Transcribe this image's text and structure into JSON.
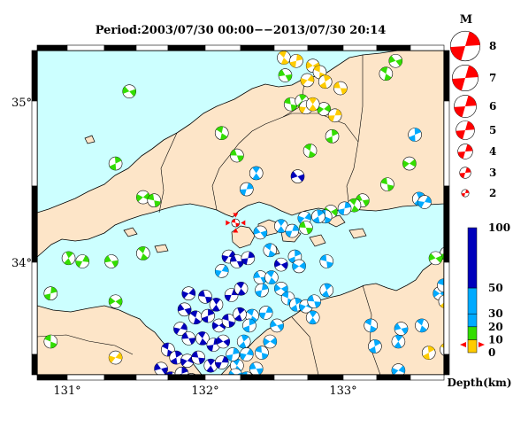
{
  "map": {
    "title": "Period:2003/07/30 00:00−−2013/07/30 20:14",
    "lat_labels": [
      "35°",
      "34°"
    ],
    "lon_labels": [
      "131°",
      "132°",
      "133°"
    ],
    "colors": {
      "sea": "#ccffff",
      "land": "#fde5c8",
      "border": "#000000",
      "frame_black": "#000000"
    }
  },
  "magnitude_legend": {
    "heading": "M",
    "items": [
      {
        "label": "8",
        "magnitude": 8
      },
      {
        "label": "7",
        "magnitude": 7
      },
      {
        "label": "6",
        "magnitude": 6
      },
      {
        "label": "5",
        "magnitude": 5
      },
      {
        "label": "4",
        "magnitude": 4
      },
      {
        "label": "3",
        "magnitude": 3
      },
      {
        "label": "2",
        "magnitude": 2
      }
    ]
  },
  "depth_legend": {
    "labels": [
      "100",
      "50",
      "30",
      "20",
      "10",
      "0"
    ],
    "unit_label": "Depth(km)",
    "bands": [
      {
        "from": 0,
        "to": 10,
        "color": "#ffcc00"
      },
      {
        "from": 10,
        "to": 20,
        "color": "#33dd00"
      },
      {
        "from": 20,
        "to": 30,
        "color": "#00aaff"
      },
      {
        "from": 30,
        "to": 50,
        "color": "#00aaff"
      },
      {
        "from": 50,
        "to": 100,
        "color": "#0000bb"
      }
    ]
  },
  "events": {
    "highlight": {
      "lon": 132.22,
      "lat": 34.24,
      "color": "#ff0000"
    },
    "list": [
      {
        "lon": 131.45,
        "lat": 35.06,
        "c": "g"
      },
      {
        "lon": 132.12,
        "lat": 34.8,
        "c": "g"
      },
      {
        "lon": 131.35,
        "lat": 34.61,
        "c": "g"
      },
      {
        "lon": 131.55,
        "lat": 34.4,
        "c": "g"
      },
      {
        "lon": 131.63,
        "lat": 34.38,
        "c": "g"
      },
      {
        "lon": 131.01,
        "lat": 34.02,
        "c": "g"
      },
      {
        "lon": 131.11,
        "lat": 34.0,
        "c": "g"
      },
      {
        "lon": 131.32,
        "lat": 34.0,
        "c": "g"
      },
      {
        "lon": 131.55,
        "lat": 34.05,
        "c": "g"
      },
      {
        "lon": 130.88,
        "lat": 33.8,
        "c": "g"
      },
      {
        "lon": 131.35,
        "lat": 33.75,
        "c": "g"
      },
      {
        "lon": 130.88,
        "lat": 33.5,
        "c": "g"
      },
      {
        "lon": 130.72,
        "lat": 33.46,
        "c": "g"
      },
      {
        "lon": 131.35,
        "lat": 33.4,
        "c": "y"
      },
      {
        "lon": 132.23,
        "lat": 34.66,
        "c": "g"
      },
      {
        "lon": 132.37,
        "lat": 34.55,
        "c": "c"
      },
      {
        "lon": 132.3,
        "lat": 34.45,
        "c": "c"
      },
      {
        "lon": 132.67,
        "lat": 34.53,
        "c": "b"
      },
      {
        "lon": 132.76,
        "lat": 34.69,
        "c": "g"
      },
      {
        "lon": 132.92,
        "lat": 34.78,
        "c": "g"
      },
      {
        "lon": 132.86,
        "lat": 34.95,
        "c": "g"
      },
      {
        "lon": 132.62,
        "lat": 34.98,
        "c": "g"
      },
      {
        "lon": 132.7,
        "lat": 35.0,
        "c": "g"
      },
      {
        "lon": 132.73,
        "lat": 34.96,
        "c": "y"
      },
      {
        "lon": 132.58,
        "lat": 35.16,
        "c": "g"
      },
      {
        "lon": 132.57,
        "lat": 35.27,
        "c": "y"
      },
      {
        "lon": 132.66,
        "lat": 35.25,
        "c": "y"
      },
      {
        "lon": 132.78,
        "lat": 35.22,
        "c": "y"
      },
      {
        "lon": 132.83,
        "lat": 35.18,
        "c": "y"
      },
      {
        "lon": 132.87,
        "lat": 35.12,
        "c": "y"
      },
      {
        "lon": 132.74,
        "lat": 35.13,
        "c": "y"
      },
      {
        "lon": 132.98,
        "lat": 35.08,
        "c": "y"
      },
      {
        "lon": 132.78,
        "lat": 34.98,
        "c": "y"
      },
      {
        "lon": 132.94,
        "lat": 34.91,
        "c": "y"
      },
      {
        "lon": 133.38,
        "lat": 35.25,
        "c": "g"
      },
      {
        "lon": 133.31,
        "lat": 35.17,
        "c": "g"
      },
      {
        "lon": 133.52,
        "lat": 34.79,
        "c": "c"
      },
      {
        "lon": 133.48,
        "lat": 34.61,
        "c": "g"
      },
      {
        "lon": 133.32,
        "lat": 34.48,
        "c": "g"
      },
      {
        "lon": 133.55,
        "lat": 34.39,
        "c": "c"
      },
      {
        "lon": 133.59,
        "lat": 34.37,
        "c": "c"
      },
      {
        "lon": 133.14,
        "lat": 34.38,
        "c": "g"
      },
      {
        "lon": 133.08,
        "lat": 34.35,
        "c": "g"
      },
      {
        "lon": 133.01,
        "lat": 34.33,
        "c": "c"
      },
      {
        "lon": 132.91,
        "lat": 34.31,
        "c": "g"
      },
      {
        "lon": 132.87,
        "lat": 34.28,
        "c": "c"
      },
      {
        "lon": 132.82,
        "lat": 34.28,
        "c": "c"
      },
      {
        "lon": 132.72,
        "lat": 34.27,
        "c": "c"
      },
      {
        "lon": 132.73,
        "lat": 34.21,
        "c": "g"
      },
      {
        "lon": 132.55,
        "lat": 34.22,
        "c": "c"
      },
      {
        "lon": 132.63,
        "lat": 34.19,
        "c": "c"
      },
      {
        "lon": 132.4,
        "lat": 34.18,
        "c": "c"
      },
      {
        "lon": 132.47,
        "lat": 34.07,
        "c": "c"
      },
      {
        "lon": 132.65,
        "lat": 34.03,
        "c": "c"
      },
      {
        "lon": 132.68,
        "lat": 33.97,
        "c": "c"
      },
      {
        "lon": 132.88,
        "lat": 34.0,
        "c": "c"
      },
      {
        "lon": 132.88,
        "lat": 33.82,
        "c": "c"
      },
      {
        "lon": 132.12,
        "lat": 33.94,
        "c": "c"
      },
      {
        "lon": 132.4,
        "lat": 33.9,
        "c": "c"
      },
      {
        "lon": 132.48,
        "lat": 33.9,
        "c": "c"
      },
      {
        "lon": 132.41,
        "lat": 33.82,
        "c": "c"
      },
      {
        "lon": 132.55,
        "lat": 33.83,
        "c": "c"
      },
      {
        "lon": 132.6,
        "lat": 33.77,
        "c": "c"
      },
      {
        "lon": 132.66,
        "lat": 33.73,
        "c": "c"
      },
      {
        "lon": 132.73,
        "lat": 33.72,
        "c": "c"
      },
      {
        "lon": 132.79,
        "lat": 33.75,
        "c": "c"
      },
      {
        "lon": 132.78,
        "lat": 33.65,
        "c": "c"
      },
      {
        "lon": 132.44,
        "lat": 33.68,
        "c": "c"
      },
      {
        "lon": 132.52,
        "lat": 33.6,
        "c": "c"
      },
      {
        "lon": 132.34,
        "lat": 33.66,
        "c": "c"
      },
      {
        "lon": 132.32,
        "lat": 33.6,
        "c": "c"
      },
      {
        "lon": 132.47,
        "lat": 33.5,
        "c": "c"
      },
      {
        "lon": 132.41,
        "lat": 33.43,
        "c": "c"
      },
      {
        "lon": 132.28,
        "lat": 33.5,
        "c": "c"
      },
      {
        "lon": 132.3,
        "lat": 33.42,
        "c": "c"
      },
      {
        "lon": 132.37,
        "lat": 33.33,
        "c": "c"
      },
      {
        "lon": 132.23,
        "lat": 33.35,
        "c": "c"
      },
      {
        "lon": 132.2,
        "lat": 33.42,
        "c": "c"
      },
      {
        "lon": 132.22,
        "lat": 33.29,
        "c": "c"
      },
      {
        "lon": 132.3,
        "lat": 33.27,
        "c": "c"
      },
      {
        "lon": 132.36,
        "lat": 33.22,
        "c": "c"
      },
      {
        "lon": 131.88,
        "lat": 33.8,
        "c": "b"
      },
      {
        "lon": 132.0,
        "lat": 33.78,
        "c": "b"
      },
      {
        "lon": 132.08,
        "lat": 33.73,
        "c": "b"
      },
      {
        "lon": 132.19,
        "lat": 33.79,
        "c": "b"
      },
      {
        "lon": 131.85,
        "lat": 33.7,
        "c": "b"
      },
      {
        "lon": 131.93,
        "lat": 33.65,
        "c": "b"
      },
      {
        "lon": 132.02,
        "lat": 33.66,
        "c": "b"
      },
      {
        "lon": 132.1,
        "lat": 33.6,
        "c": "b"
      },
      {
        "lon": 132.17,
        "lat": 33.63,
        "c": "b"
      },
      {
        "lon": 132.25,
        "lat": 33.67,
        "c": "b"
      },
      {
        "lon": 131.82,
        "lat": 33.58,
        "c": "b"
      },
      {
        "lon": 131.88,
        "lat": 33.52,
        "c": "b"
      },
      {
        "lon": 131.98,
        "lat": 33.52,
        "c": "b"
      },
      {
        "lon": 132.06,
        "lat": 33.48,
        "c": "b"
      },
      {
        "lon": 132.13,
        "lat": 33.5,
        "c": "b"
      },
      {
        "lon": 131.73,
        "lat": 33.45,
        "c": "b"
      },
      {
        "lon": 131.79,
        "lat": 33.4,
        "c": "b"
      },
      {
        "lon": 131.87,
        "lat": 33.38,
        "c": "b"
      },
      {
        "lon": 131.95,
        "lat": 33.4,
        "c": "b"
      },
      {
        "lon": 132.04,
        "lat": 33.35,
        "c": "b"
      },
      {
        "lon": 132.12,
        "lat": 33.37,
        "c": "b"
      },
      {
        "lon": 131.68,
        "lat": 33.33,
        "c": "b"
      },
      {
        "lon": 131.75,
        "lat": 33.27,
        "c": "b"
      },
      {
        "lon": 131.83,
        "lat": 33.3,
        "c": "b"
      },
      {
        "lon": 131.9,
        "lat": 33.26,
        "c": "b"
      },
      {
        "lon": 132.0,
        "lat": 33.23,
        "c": "b"
      },
      {
        "lon": 132.14,
        "lat": 33.23,
        "c": "b"
      },
      {
        "lon": 132.17,
        "lat": 34.03,
        "c": "b"
      },
      {
        "lon": 132.23,
        "lat": 34.0,
        "c": "b"
      },
      {
        "lon": 132.26,
        "lat": 33.83,
        "c": "b"
      },
      {
        "lon": 132.31,
        "lat": 34.02,
        "c": "b"
      },
      {
        "lon": 132.55,
        "lat": 33.98,
        "c": "b"
      },
      {
        "lon": 133.2,
        "lat": 33.6,
        "c": "c"
      },
      {
        "lon": 133.23,
        "lat": 33.47,
        "c": "c"
      },
      {
        "lon": 133.4,
        "lat": 33.32,
        "c": "c"
      },
      {
        "lon": 133.12,
        "lat": 33.25,
        "c": "c"
      },
      {
        "lon": 133.4,
        "lat": 33.5,
        "c": "c"
      },
      {
        "lon": 133.43,
        "lat": 33.2,
        "c": "c"
      },
      {
        "lon": 133.42,
        "lat": 33.58,
        "c": "c"
      },
      {
        "lon": 133.57,
        "lat": 33.6,
        "c": "c"
      },
      {
        "lon": 133.78,
        "lat": 33.64,
        "c": "c"
      },
      {
        "lon": 133.7,
        "lat": 33.8,
        "c": "c"
      },
      {
        "lon": 133.73,
        "lat": 33.85,
        "c": "c"
      },
      {
        "lon": 133.74,
        "lat": 33.75,
        "c": "y"
      },
      {
        "lon": 133.8,
        "lat": 34.05,
        "c": "y"
      },
      {
        "lon": 133.83,
        "lat": 33.99,
        "c": "y"
      },
      {
        "lon": 133.81,
        "lat": 34.14,
        "c": "g"
      },
      {
        "lon": 133.75,
        "lat": 34.05,
        "c": "g"
      },
      {
        "lon": 133.67,
        "lat": 34.02,
        "c": "g"
      },
      {
        "lon": 133.75,
        "lat": 33.45,
        "c": "y"
      },
      {
        "lon": 133.62,
        "lat": 33.43,
        "c": "y"
      }
    ]
  }
}
